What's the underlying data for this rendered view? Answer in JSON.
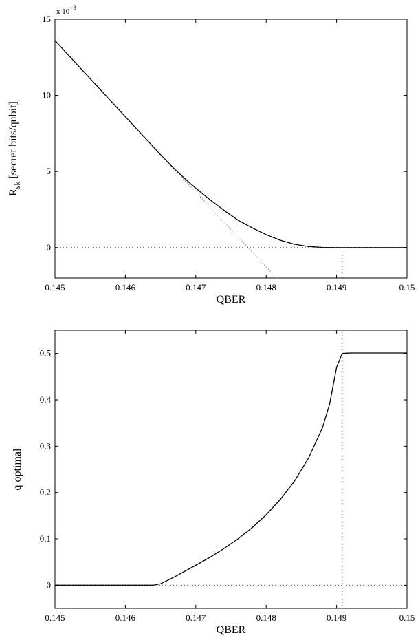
{
  "chart_data": [
    {
      "type": "line",
      "xlabel": "QBER",
      "ylabel_main": "R",
      "ylabel_sub": "sk",
      "ylabel_rest": " [secret bits/qubit]",
      "y_exponent_label": "x 10",
      "y_exponent_power": "−3",
      "xlim": [
        0.145,
        0.15
      ],
      "ylim": [
        -2,
        15
      ],
      "x_ticks": [
        0.145,
        0.146,
        0.147,
        0.148,
        0.149,
        0.15
      ],
      "x_tick_labels": [
        "0.145",
        "0.146",
        "0.147",
        "0.148",
        "0.149",
        "0.15"
      ],
      "y_ticks": [
        0,
        5,
        10,
        15
      ],
      "y_tick_labels": [
        "0",
        "5",
        "10",
        "15"
      ],
      "series": [
        {
          "style": "solid",
          "color": "#000000",
          "x": [
            0.145,
            0.1455,
            0.146,
            0.1463,
            0.1465,
            0.1467,
            0.1469,
            0.147,
            0.1472,
            0.1474,
            0.1476,
            0.1478,
            0.148,
            0.1482,
            0.1484,
            0.1486,
            0.1488,
            0.149,
            0.1495,
            0.15
          ],
          "y": [
            13.6,
            11.1,
            8.6,
            7.1,
            6.1,
            5.15,
            4.3,
            3.9,
            3.15,
            2.45,
            1.8,
            1.3,
            0.85,
            0.48,
            0.22,
            0.07,
            0.01,
            0.0,
            0.0,
            0.0
          ]
        },
        {
          "style": "dotted",
          "color": "#555555",
          "x": [
            0.1465,
            0.14815
          ],
          "y": [
            6.1,
            -2
          ]
        },
        {
          "style": "dotted",
          "color": "#555555",
          "x": [
            0.145,
            0.15
          ],
          "y": [
            0,
            0
          ]
        },
        {
          "style": "dotted",
          "color": "#555555",
          "x": [
            0.14908,
            0.14908
          ],
          "y": [
            -2,
            0
          ]
        }
      ]
    },
    {
      "type": "line",
      "xlabel": "QBER",
      "ylabel": "q optimal",
      "xlim": [
        0.145,
        0.15
      ],
      "ylim": [
        -0.05,
        0.55
      ],
      "x_ticks": [
        0.145,
        0.146,
        0.147,
        0.148,
        0.149,
        0.15
      ],
      "x_tick_labels": [
        "0.145",
        "0.146",
        "0.147",
        "0.148",
        "0.149",
        "0.15"
      ],
      "y_ticks": [
        0,
        0.1,
        0.2,
        0.3,
        0.4,
        0.5
      ],
      "y_tick_labels": [
        "0",
        "0.1",
        "0.2",
        "0.3",
        "0.4",
        "0.5"
      ],
      "series": [
        {
          "style": "solid",
          "color": "#000000",
          "x": [
            0.145,
            0.1464,
            0.1465,
            0.1467,
            0.147,
            0.1472,
            0.1474,
            0.1476,
            0.1478,
            0.148,
            0.1482,
            0.1484,
            0.1486,
            0.1488,
            0.1489,
            0.149,
            0.14908,
            0.1492,
            0.1495,
            0.15
          ],
          "y": [
            0.0,
            0.0,
            0.003,
            0.018,
            0.043,
            0.06,
            0.079,
            0.1,
            0.124,
            0.152,
            0.185,
            0.224,
            0.274,
            0.34,
            0.39,
            0.47,
            0.5,
            0.501,
            0.501,
            0.501
          ]
        },
        {
          "style": "dotted",
          "color": "#555555",
          "x": [
            0.145,
            0.15
          ],
          "y": [
            0,
            0
          ]
        },
        {
          "style": "dotted",
          "color": "#555555",
          "x": [
            0.14908,
            0.14908
          ],
          "y": [
            -0.05,
            0.55
          ]
        }
      ]
    }
  ]
}
